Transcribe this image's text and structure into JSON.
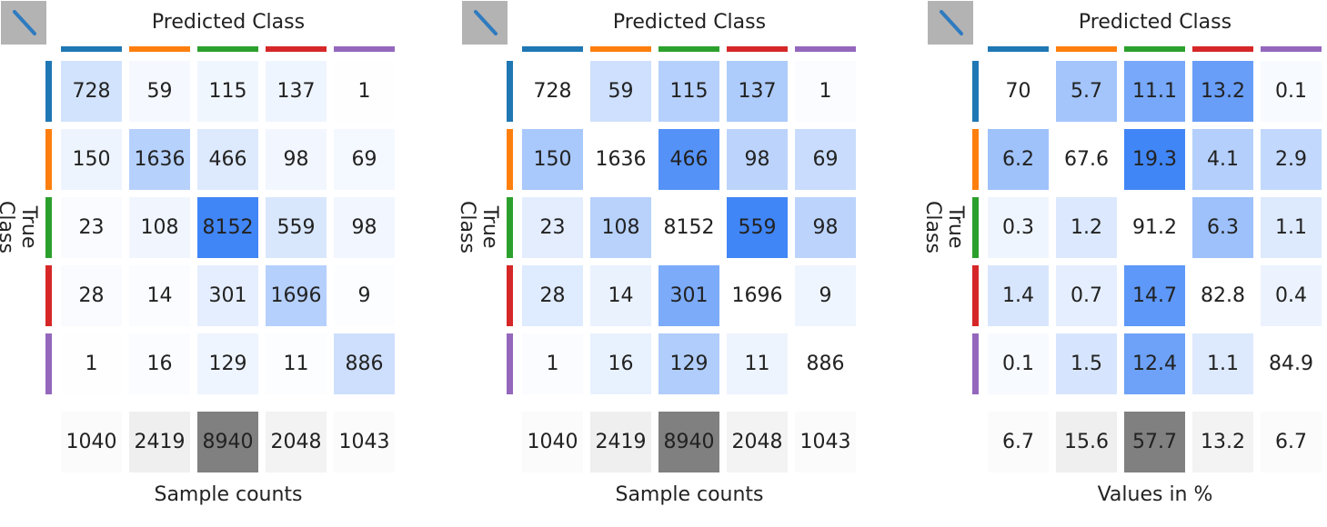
{
  "colors": {
    "classes": [
      "#1f77b4",
      "#ff7f0e",
      "#2ca02c",
      "#d62728",
      "#9467bd"
    ],
    "cell_scale_low": "#ffffff",
    "cell_scale_high": "#3b82f6",
    "totals_scale_low": "#ffffff",
    "totals_scale_high": "#808080",
    "button_bg": "#b3b3b3",
    "button_icon": "#2f7bc0"
  },
  "toggle_icon": "diagonal-line-icon",
  "chart_data": [
    {
      "type": "heatmap",
      "title": "Predicted Class",
      "ylabel": "True Class",
      "xlabel": "Sample counts",
      "normalization": "global",
      "cells": [
        [
          "728",
          "59",
          "115",
          "137",
          "1"
        ],
        [
          "150",
          "1636",
          "466",
          "98",
          "69"
        ],
        [
          "23",
          "108",
          "8152",
          "559",
          "98"
        ],
        [
          "28",
          "14",
          "301",
          "1696",
          "9"
        ],
        [
          "1",
          "16",
          "129",
          "11",
          "886"
        ]
      ],
      "values": [
        [
          728,
          59,
          115,
          137,
          1
        ],
        [
          150,
          1636,
          466,
          98,
          69
        ],
        [
          23,
          108,
          8152,
          559,
          98
        ],
        [
          28,
          14,
          301,
          1696,
          9
        ],
        [
          1,
          16,
          129,
          11,
          886
        ]
      ],
      "totals": [
        "1040",
        "2419",
        "8940",
        "2048",
        "1043"
      ],
      "total_values": [
        1040,
        2419,
        8940,
        2048,
        1043
      ]
    },
    {
      "type": "heatmap",
      "title": "Predicted Class",
      "ylabel": "True Class",
      "xlabel": "Sample counts",
      "normalization": "off-diagonal",
      "cells": [
        [
          "728",
          "59",
          "115",
          "137",
          "1"
        ],
        [
          "150",
          "1636",
          "466",
          "98",
          "69"
        ],
        [
          "23",
          "108",
          "8152",
          "559",
          "98"
        ],
        [
          "28",
          "14",
          "301",
          "1696",
          "9"
        ],
        [
          "1",
          "16",
          "129",
          "11",
          "886"
        ]
      ],
      "values": [
        [
          728,
          59,
          115,
          137,
          1
        ],
        [
          150,
          1636,
          466,
          98,
          69
        ],
        [
          23,
          108,
          8152,
          559,
          98
        ],
        [
          28,
          14,
          301,
          1696,
          9
        ],
        [
          1,
          16,
          129,
          11,
          886
        ]
      ],
      "totals": [
        "1040",
        "2419",
        "8940",
        "2048",
        "1043"
      ],
      "total_values": [
        1040,
        2419,
        8940,
        2048,
        1043
      ]
    },
    {
      "type": "heatmap",
      "title": "Predicted Class",
      "ylabel": "True Class",
      "xlabel": "Values in %",
      "normalization": "off-diagonal",
      "cells": [
        [
          "70",
          "5.7",
          "11.1",
          "13.2",
          "0.1"
        ],
        [
          "6.2",
          "67.6",
          "19.3",
          "4.1",
          "2.9"
        ],
        [
          "0.3",
          "1.2",
          "91.2",
          "6.3",
          "1.1"
        ],
        [
          "1.4",
          "0.7",
          "14.7",
          "82.8",
          "0.4"
        ],
        [
          "0.1",
          "1.5",
          "12.4",
          "1.1",
          "84.9"
        ]
      ],
      "values": [
        [
          70,
          5.7,
          11.1,
          13.2,
          0.1
        ],
        [
          6.2,
          67.6,
          19.3,
          4.1,
          2.9
        ],
        [
          0.3,
          1.2,
          91.2,
          6.3,
          1.1
        ],
        [
          1.4,
          0.7,
          14.7,
          82.8,
          0.4
        ],
        [
          0.1,
          1.5,
          12.4,
          1.1,
          84.9
        ]
      ],
      "totals": [
        "6.7",
        "15.6",
        "57.7",
        "13.2",
        "6.7"
      ],
      "total_values": [
        6.7,
        15.6,
        57.7,
        13.2,
        6.7
      ]
    }
  ]
}
